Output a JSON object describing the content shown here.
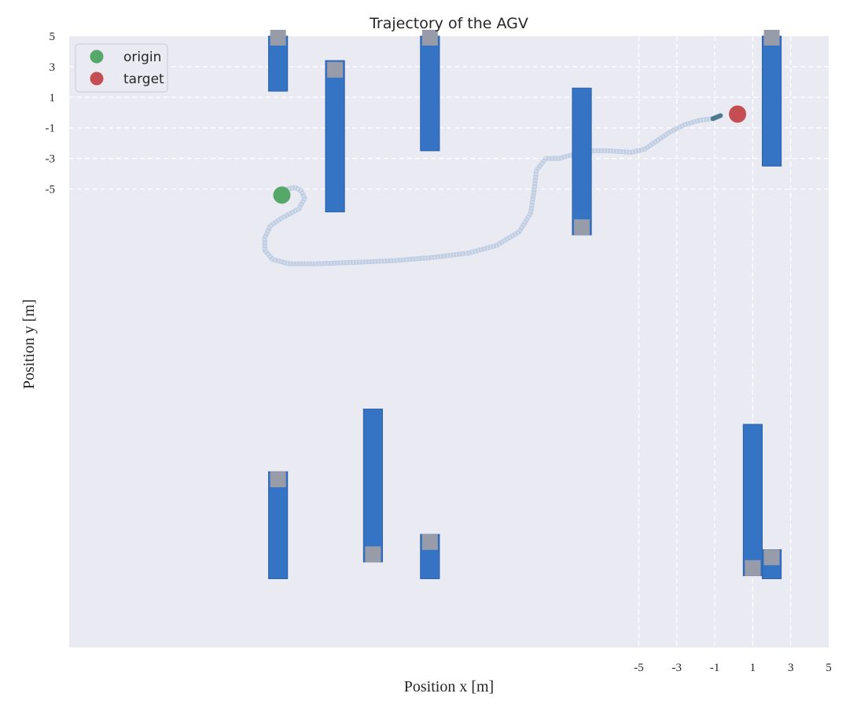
{
  "chart_data": {
    "type": "scatter",
    "title": "Trajectory of the AGV",
    "xlabel": "Position x [m]",
    "ylabel": "Position y [m]",
    "x_ticks": [
      "-5",
      "-3",
      "-1",
      "1",
      "3",
      "5"
    ],
    "y_ticks": [
      "5",
      "3",
      "1",
      "-1",
      "-3",
      "-5"
    ],
    "xlim": [
      -35,
      5
    ],
    "ylim": [
      -35,
      5
    ],
    "grid": true,
    "legend_position": "top-left",
    "legend": [
      {
        "label": "origin",
        "color": "#55a868"
      },
      {
        "label": "target",
        "color": "#c44e52"
      }
    ],
    "origin": {
      "x": -23.8,
      "y": -5.4
    },
    "target": {
      "x": 0.2,
      "y": -0.1
    },
    "obstacles": [
      {
        "x0": -24.5,
        "x1": -23.5,
        "y0": 1.4,
        "y1": 5.0,
        "marker_y": 4.9
      },
      {
        "x0": -21.5,
        "x1": -20.5,
        "y0": -6.5,
        "y1": 3.4,
        "marker_y": 2.8
      },
      {
        "x0": -16.5,
        "x1": -15.5,
        "y0": -2.5,
        "y1": 5.0,
        "marker_y": 4.9
      },
      {
        "x0": -8.5,
        "x1": -7.5,
        "y0": -8.0,
        "y1": 1.6,
        "marker_y": -7.5
      },
      {
        "x0": 1.5,
        "x1": 2.5,
        "y0": -3.5,
        "y1": 5.0,
        "marker_y": 4.9
      },
      {
        "x0": -24.5,
        "x1": -23.5,
        "y0": -30.5,
        "y1": -23.5,
        "marker_y": -24.0
      },
      {
        "x0": -19.5,
        "x1": -18.5,
        "y0": -29.4,
        "y1": -19.4,
        "marker_y": -28.9
      },
      {
        "x0": -16.5,
        "x1": -15.5,
        "y0": -30.5,
        "y1": -27.6,
        "marker_y": -28.1
      },
      {
        "x0": 0.5,
        "x1": 1.5,
        "y0": -30.3,
        "y1": -20.4,
        "marker_y": -29.8
      },
      {
        "x0": 1.5,
        "x1": 2.5,
        "y0": -30.5,
        "y1": -28.6,
        "marker_y": -29.1
      }
    ],
    "trajectory": {
      "color": "#b0c4de",
      "end_color": "#4a7a8c",
      "points": [
        [
          -23.8,
          -5.4
        ],
        [
          -23.5,
          -5.0
        ],
        [
          -23.1,
          -4.9
        ],
        [
          -22.8,
          -5.1
        ],
        [
          -22.6,
          -5.6
        ],
        [
          -22.9,
          -6.3
        ],
        [
          -23.8,
          -6.9
        ],
        [
          -24.4,
          -7.4
        ],
        [
          -24.7,
          -8.2
        ],
        [
          -24.7,
          -9.0
        ],
        [
          -24.3,
          -9.6
        ],
        [
          -23.4,
          -9.9
        ],
        [
          -22.0,
          -9.9
        ],
        [
          -20.0,
          -9.8
        ],
        [
          -18.0,
          -9.7
        ],
        [
          -16.0,
          -9.5
        ],
        [
          -14.0,
          -9.2
        ],
        [
          -12.5,
          -8.7
        ],
        [
          -11.3,
          -7.8
        ],
        [
          -10.7,
          -6.6
        ],
        [
          -10.5,
          -5.0
        ],
        [
          -10.4,
          -3.8
        ],
        [
          -9.9,
          -3.0
        ],
        [
          -9.2,
          -3.0
        ],
        [
          -8.6,
          -2.8
        ],
        [
          -7.8,
          -2.5
        ],
        [
          -6.6,
          -2.5
        ],
        [
          -5.4,
          -2.6
        ],
        [
          -4.7,
          -2.4
        ],
        [
          -4.1,
          -1.9
        ],
        [
          -3.4,
          -1.3
        ],
        [
          -2.6,
          -0.8
        ],
        [
          -1.8,
          -0.5
        ],
        [
          -1.1,
          -0.4
        ],
        [
          -0.7,
          -0.2
        ]
      ]
    }
  }
}
